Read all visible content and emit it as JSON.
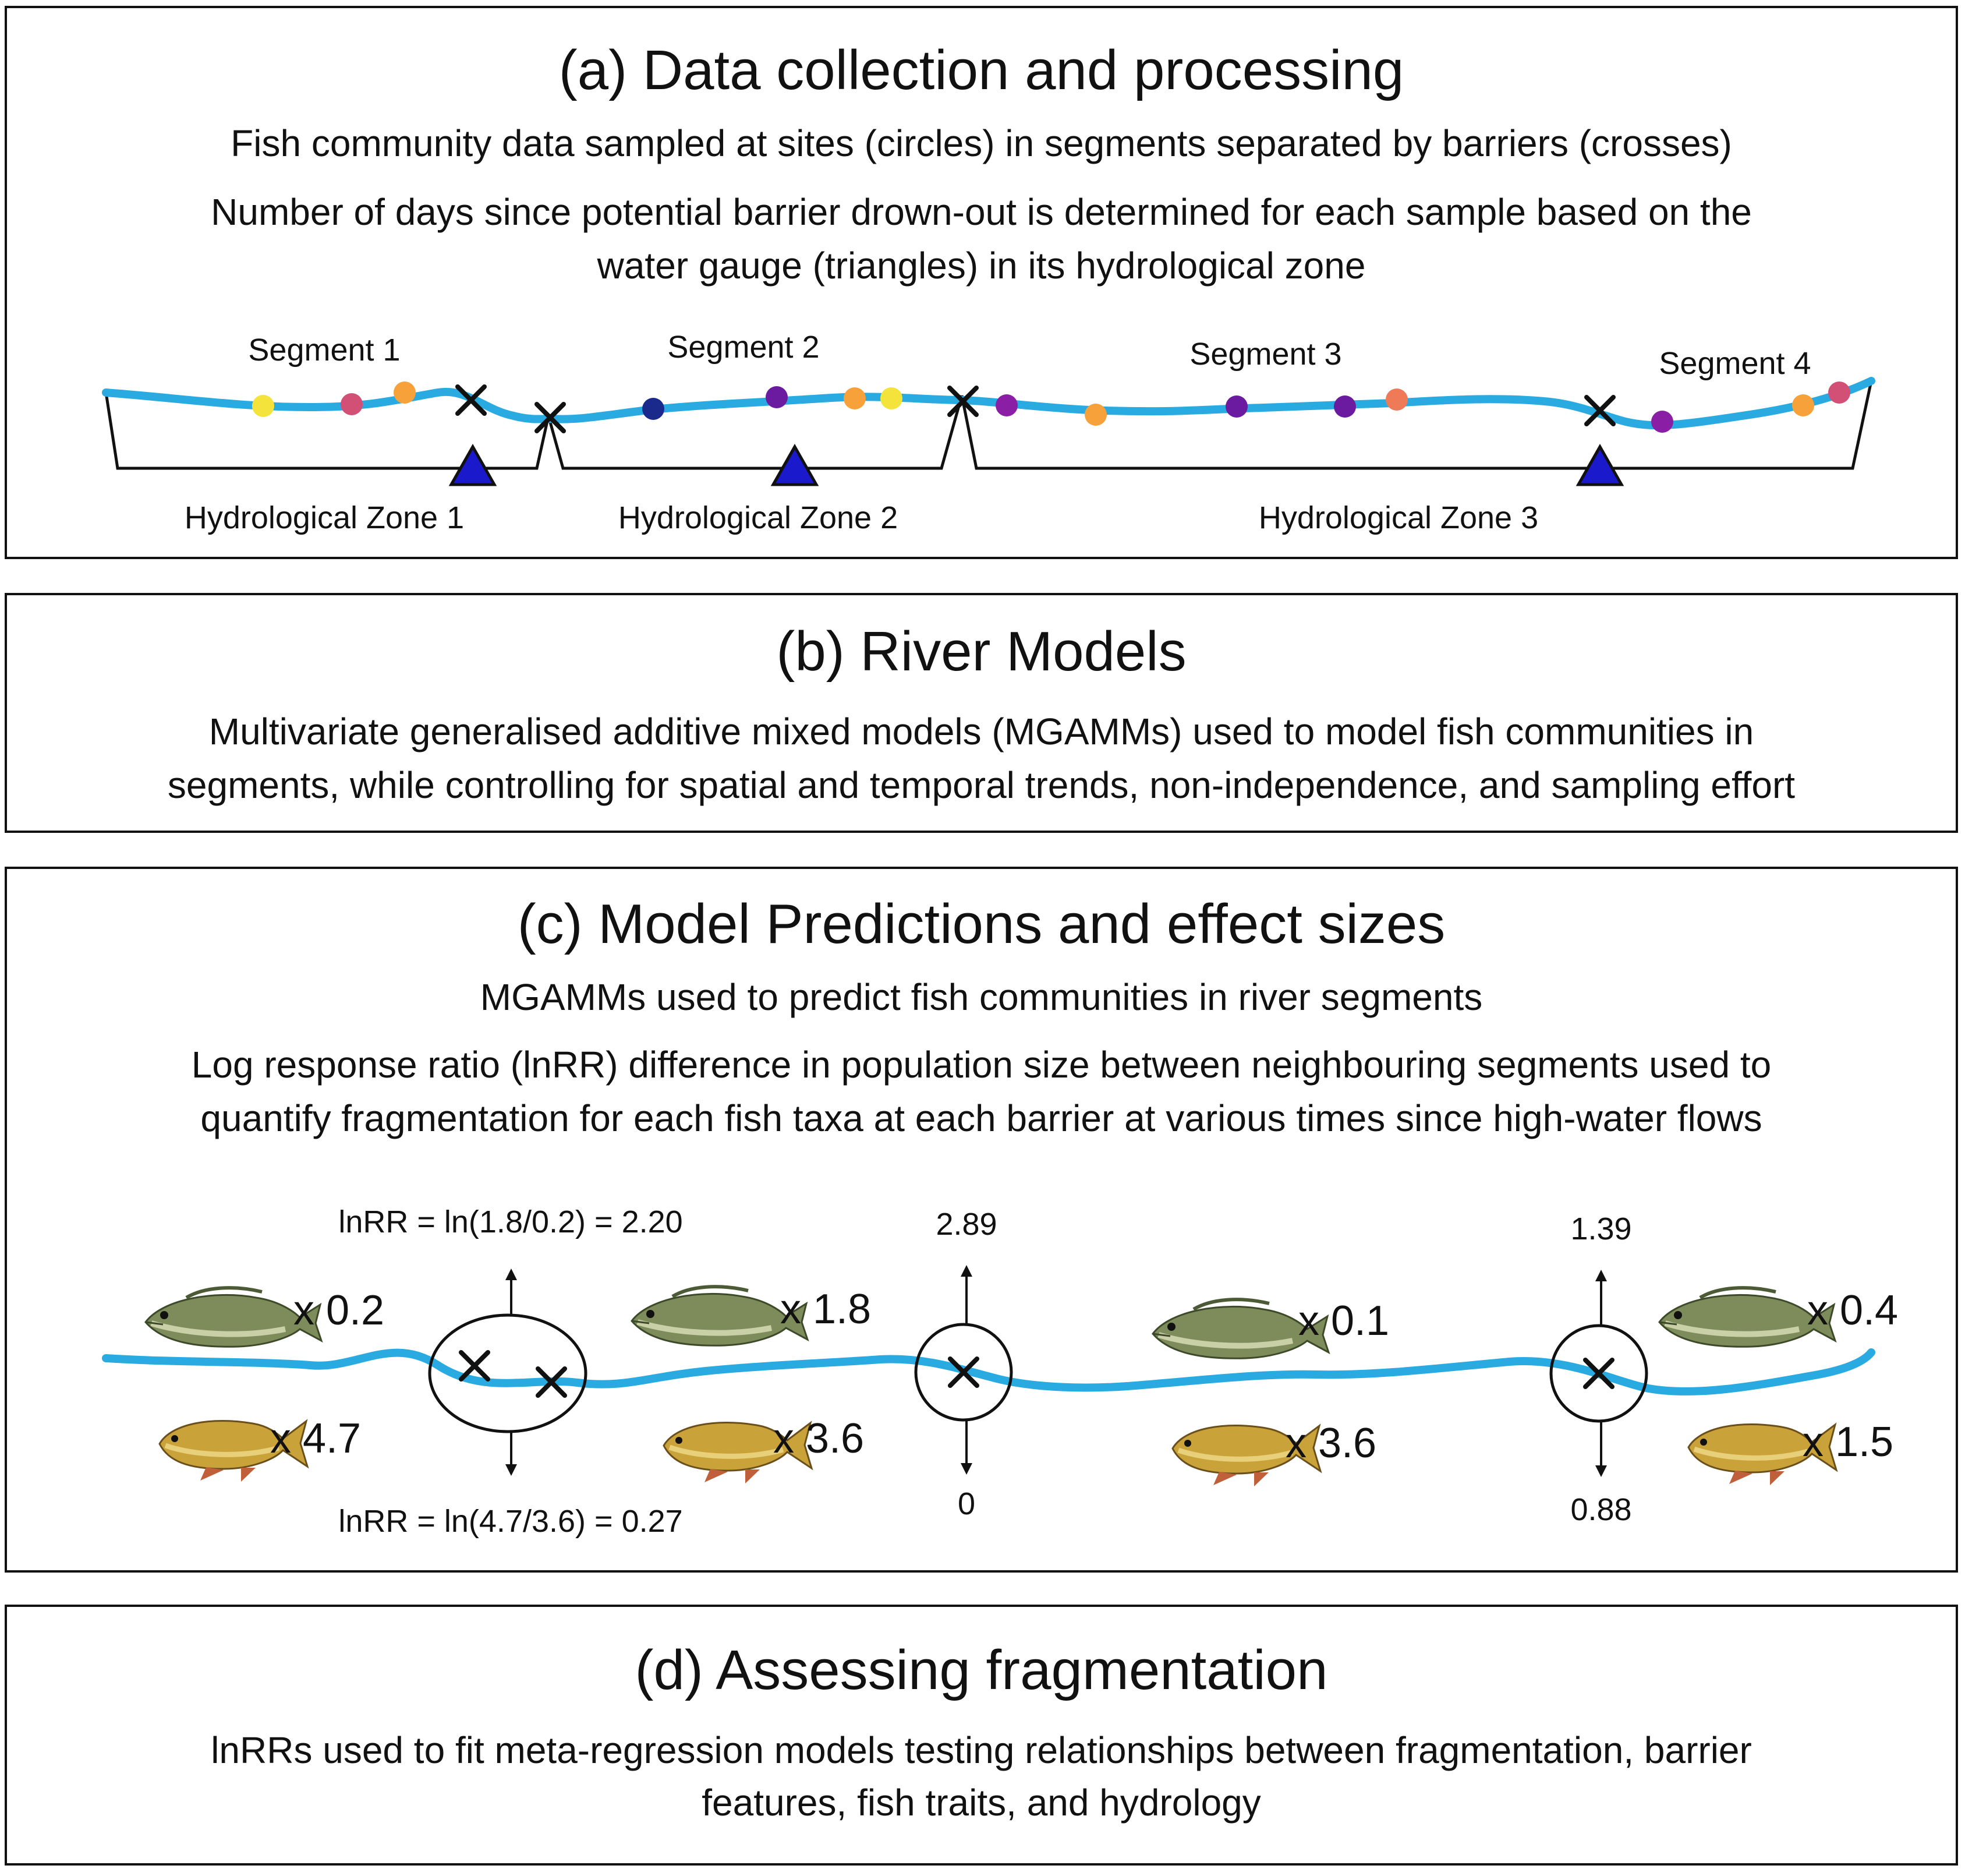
{
  "panel_a": {
    "title": "(a) Data collection and processing",
    "line1": "Fish community data sampled at sites (circles) in segments separated by barriers (crosses)",
    "line2": "Number of days since potential barrier drown-out is determined for each sample based on the",
    "line3": "water gauge (triangles) in its hydrological zone",
    "segments": [
      "Segment 1",
      "Segment 2",
      "Segment 3",
      "Segment 4"
    ],
    "zones": [
      "Hydrological Zone 1",
      "Hydrological Zone 2",
      "Hydrological Zone 3"
    ]
  },
  "panel_b": {
    "title": "(b) River Models",
    "line1": "Multivariate generalised additive mixed models (MGAMMs) used to model fish communities in",
    "line2": "segments, while controlling for spatial and temporal trends, non-independence, and sampling effort"
  },
  "panel_c": {
    "title": "(c) Model Predictions and effect sizes",
    "line1": "MGAMMs used to predict fish communities in river segments",
    "line2": "Log response ratio (lnRR) difference in population size between neighbouring segments used to",
    "line3": "quantify fragmentation for each fish taxa at each barrier at various times since high-water flows",
    "bass_counts": [
      "x 0.2",
      "x 1.8",
      "x 0.1",
      "x 0.4"
    ],
    "carp_counts": [
      "x 4.7",
      "x 3.6",
      "x 3.6",
      "x 1.5"
    ],
    "barrier1_top": "lnRR = ln(1.8/0.2) = 2.20",
    "barrier1_bottom": "lnRR = ln(4.7/3.6) = 0.27",
    "barrier2_top": "2.89",
    "barrier2_bottom": "0",
    "barrier3_top": "1.39",
    "barrier3_bottom": "0.88"
  },
  "panel_d": {
    "title": "(d) Assessing fragmentation",
    "line1": "lnRRs used to fit meta-regression models testing relationships between fragmentation, barrier",
    "line2": "features, fish traits, and hydrology"
  },
  "colors": {
    "river": "#29abe2",
    "gauge": "#1a1acc",
    "site_yellow": "#f4e33a",
    "site_pink": "#d24f75",
    "site_orange": "#f7a13b",
    "site_salmon": "#ef7a58",
    "site_navy": "#1a2a8c",
    "site_purple": "#6a1ba0",
    "site_violet": "#8a1fa6"
  }
}
